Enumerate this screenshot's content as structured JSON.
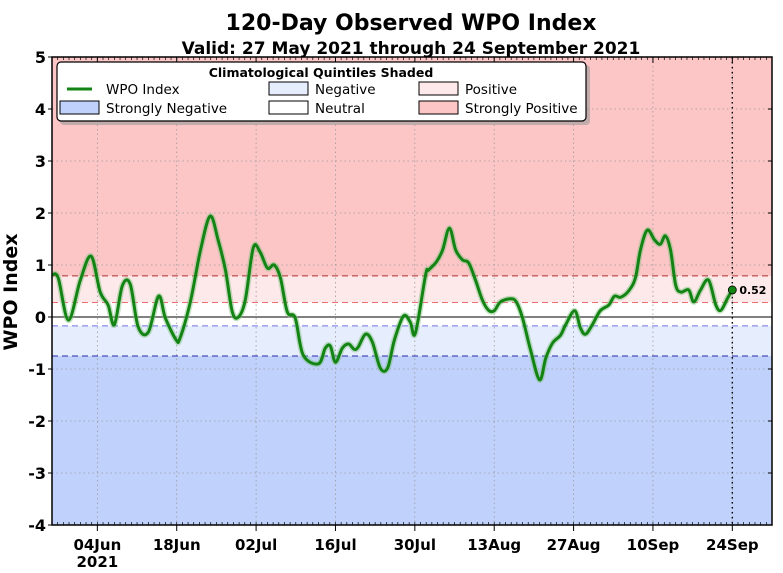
{
  "chart_data": {
    "type": "line",
    "title": "120-Day Observed WPO Index",
    "subtitle": "Valid: 27 May 2021 through 24 September 2021",
    "xlabel": "",
    "ylabel": "WPO Index",
    "ylim": [
      -4,
      5
    ],
    "yticks": [
      5,
      4,
      3,
      2,
      1,
      0,
      -1,
      -2,
      -3,
      -4
    ],
    "xlim_days": [
      0,
      127
    ],
    "x_unit": "days since 27 May 2021",
    "xticks": [
      {
        "day": 8,
        "label": "04Jun",
        "sublabel": "2021"
      },
      {
        "day": 22,
        "label": "18Jun"
      },
      {
        "day": 36,
        "label": "02Jul"
      },
      {
        "day": 50,
        "label": "16Jul"
      },
      {
        "day": 64,
        "label": "30Jul"
      },
      {
        "day": 78,
        "label": "13Aug"
      },
      {
        "day": 92,
        "label": "27Aug"
      },
      {
        "day": 106,
        "label": "10Sep"
      },
      {
        "day": 120,
        "label": "24Sep"
      }
    ],
    "grid": true,
    "legend": {
      "title": "Climatological Quintiles Shaded",
      "placement": "top-left",
      "entries": [
        {
          "label": "WPO Index",
          "kind": "line",
          "color": "#138413"
        },
        {
          "label": "Negative",
          "kind": "patch",
          "color": "#e6edfc"
        },
        {
          "label": "Positive",
          "kind": "patch",
          "color": "#fde9e9"
        },
        {
          "label": "Strongly Negative",
          "kind": "patch",
          "color": "#c0d2fc"
        },
        {
          "label": "Neutral",
          "kind": "patch",
          "color": "#ffffff"
        },
        {
          "label": "Strongly Positive",
          "kind": "patch",
          "color": "#fdc6c6"
        }
      ]
    },
    "quintile_thresholds": [
      -0.75,
      -0.17,
      0.28,
      0.79
    ],
    "bands": [
      {
        "name": "Strongly Negative",
        "from": -4,
        "to": -0.75,
        "color": "#c0d2fc"
      },
      {
        "name": "Negative",
        "from": -0.75,
        "to": -0.17,
        "color": "#e6edfc"
      },
      {
        "name": "Neutral",
        "from": -0.17,
        "to": 0.28,
        "color": "#ffffff"
      },
      {
        "name": "Positive",
        "from": 0.28,
        "to": 0.79,
        "color": "#fde9e9"
      },
      {
        "name": "Strongly Positive",
        "from": 0.79,
        "to": 5,
        "color": "#fdc6c6"
      }
    ],
    "threshold_colors": [
      "#2a2aa8",
      "#6f6fe8",
      "#e87070",
      "#b03030"
    ],
    "series": [
      {
        "name": "WPO Index",
        "color": "#138413",
        "points": [
          [
            0,
            0.81
          ],
          [
            1.1,
            0.75
          ],
          [
            2.9,
            -0.06
          ],
          [
            5,
            0.71
          ],
          [
            6.9,
            1.17
          ],
          [
            8.5,
            0.48
          ],
          [
            9.9,
            0.23
          ],
          [
            11,
            -0.15
          ],
          [
            12.4,
            0.6
          ],
          [
            13.8,
            0.63
          ],
          [
            15.2,
            -0.19
          ],
          [
            17,
            -0.29
          ],
          [
            18.8,
            0.4
          ],
          [
            20,
            -0.02
          ],
          [
            21.9,
            -0.44
          ],
          [
            22.6,
            -0.4
          ],
          [
            24.4,
            0.29
          ],
          [
            26.2,
            1.29
          ],
          [
            27.9,
            1.94
          ],
          [
            29.3,
            1.48
          ],
          [
            30.6,
            0.9
          ],
          [
            31.8,
            0.1
          ],
          [
            32.9,
            0.0
          ],
          [
            34.1,
            0.33
          ],
          [
            35.5,
            1.33
          ],
          [
            36.7,
            1.25
          ],
          [
            38,
            0.94
          ],
          [
            39.2,
            1.0
          ],
          [
            40.3,
            0.75
          ],
          [
            41.5,
            0.1
          ],
          [
            42.9,
            -0.02
          ],
          [
            44.3,
            -0.73
          ],
          [
            47,
            -0.9
          ],
          [
            48.2,
            -0.6
          ],
          [
            49.1,
            -0.56
          ],
          [
            50,
            -0.87
          ],
          [
            51.2,
            -0.6
          ],
          [
            52.3,
            -0.52
          ],
          [
            53.3,
            -0.62
          ],
          [
            54,
            -0.58
          ],
          [
            55.3,
            -0.33
          ],
          [
            56.5,
            -0.48
          ],
          [
            57.9,
            -0.98
          ],
          [
            59.2,
            -0.98
          ],
          [
            60.4,
            -0.44
          ],
          [
            62,
            0.02
          ],
          [
            63.2,
            -0.1
          ],
          [
            64.1,
            -0.31
          ],
          [
            65.9,
            0.81
          ],
          [
            66.4,
            0.9
          ],
          [
            67.8,
            1.06
          ],
          [
            68.9,
            1.29
          ],
          [
            70.1,
            1.71
          ],
          [
            71.2,
            1.29
          ],
          [
            72.4,
            1.1
          ],
          [
            73.5,
            1.04
          ],
          [
            74.7,
            0.71
          ],
          [
            75.9,
            0.33
          ],
          [
            77,
            0.13
          ],
          [
            78,
            0.12
          ],
          [
            79.1,
            0.29
          ],
          [
            80.9,
            0.35
          ],
          [
            81.9,
            0.29
          ],
          [
            83,
            -0.02
          ],
          [
            84.4,
            -0.63
          ],
          [
            86,
            -1.21
          ],
          [
            87.1,
            -0.79
          ],
          [
            88.3,
            -0.5
          ],
          [
            89.7,
            -0.35
          ],
          [
            90.6,
            -0.15
          ],
          [
            92.2,
            0.12
          ],
          [
            93.2,
            -0.21
          ],
          [
            94.1,
            -0.33
          ],
          [
            95.3,
            -0.15
          ],
          [
            96.7,
            0.12
          ],
          [
            98.2,
            0.23
          ],
          [
            99.2,
            0.4
          ],
          [
            100.3,
            0.38
          ],
          [
            101.7,
            0.5
          ],
          [
            102.9,
            0.75
          ],
          [
            103.8,
            1.29
          ],
          [
            105,
            1.67
          ],
          [
            106.3,
            1.48
          ],
          [
            107.3,
            1.4
          ],
          [
            108.2,
            1.56
          ],
          [
            109.1,
            1.29
          ],
          [
            110,
            0.62
          ],
          [
            110.9,
            0.48
          ],
          [
            112.3,
            0.52
          ],
          [
            113.2,
            0.29
          ],
          [
            114.4,
            0.52
          ],
          [
            115.8,
            0.71
          ],
          [
            117.1,
            0.23
          ],
          [
            118,
            0.13
          ],
          [
            119.2,
            0.37
          ],
          [
            120,
            0.52
          ]
        ]
      }
    ],
    "annotations": [
      {
        "day": 120,
        "value": 0.52,
        "text": "0.52",
        "kind": "end-point"
      },
      {
        "day": 120,
        "kind": "vertical-dotted-line"
      }
    ]
  }
}
